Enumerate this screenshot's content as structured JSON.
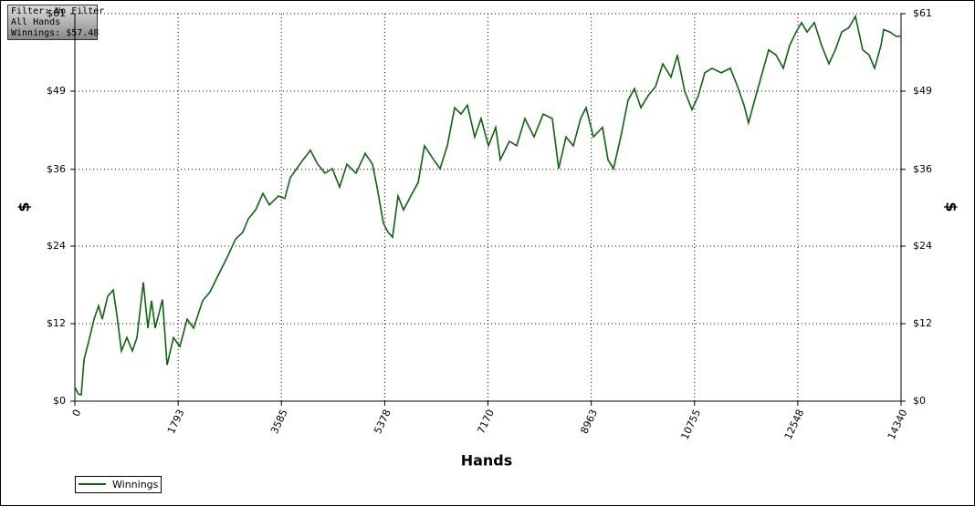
{
  "chart_data": {
    "type": "line",
    "annotations": [
      "Filter: No Filter",
      "All Hands",
      "Winnings: $57.48"
    ],
    "xlabel": "Hands",
    "ylabel": "$",
    "y2label": "$",
    "xlim": [
      0,
      14340
    ],
    "xticks": [
      0,
      1793,
      3585,
      5378,
      7170,
      8963,
      10755,
      12548,
      14340
    ],
    "ylim": [
      0,
      61
    ],
    "yticks": [
      {
        "value": 0,
        "label": "$0"
      },
      {
        "value": 12.2,
        "label": "$12"
      },
      {
        "value": 24.4,
        "label": "$24"
      },
      {
        "value": 36.49,
        "label": "$36"
      },
      {
        "value": 48.8,
        "label": "$49"
      },
      {
        "value": 61,
        "label": "$61"
      }
    ],
    "y2lim": [
      0,
      61
    ],
    "y2ticks": [
      {
        "value": 0,
        "label": "$0"
      },
      {
        "value": 12.2,
        "label": "$12"
      },
      {
        "value": 24.4,
        "label": "$24"
      },
      {
        "value": 36.49,
        "label": "$36"
      },
      {
        "value": 48.8,
        "label": "$49"
      },
      {
        "value": 61,
        "label": "$61"
      }
    ],
    "grid": true,
    "legend": "bottom-left",
    "x": [
      0,
      63,
      111,
      158,
      238,
      333,
      412,
      475,
      570,
      665,
      729,
      808,
      903,
      998,
      1077,
      1188,
      1268,
      1331,
      1394,
      1521,
      1600,
      1711,
      1822,
      1949,
      2060,
      2218,
      2345,
      2504,
      2662,
      2789,
      2915,
      3011,
      3137,
      3264,
      3375,
      3533,
      3644,
      3739,
      3850,
      3961,
      4088,
      4215,
      4342,
      4468,
      4595,
      4722,
      4880,
      5039,
      5165,
      5245,
      5356,
      5435,
      5514,
      5609,
      5704,
      5831,
      5958,
      6069,
      6227,
      6338,
      6465,
      6592,
      6702,
      6813,
      6940,
      7051,
      7178,
      7305,
      7384,
      7542,
      7669,
      7812,
      7970,
      8128,
      8287,
      8398,
      8525,
      8651,
      8778,
      8873,
      9000,
      9158,
      9253,
      9349,
      9475,
      9602,
      9713,
      9824,
      9951,
      10078,
      10204,
      10347,
      10458,
      10584,
      10711,
      10822,
      10933,
      11060,
      11218,
      11377,
      11504,
      11614,
      11693,
      11820,
      11931,
      12042,
      12169,
      12296,
      12407,
      12518,
      12613,
      12708,
      12834,
      12961,
      13088,
      13199,
      13310,
      13436,
      13547,
      13674,
      13785,
      13880,
      13991,
      14039,
      14150,
      14261,
      14340
    ],
    "series": [
      {
        "name": "Winnings",
        "color": "#0b650b",
        "values": [
          2.2,
          1.1,
          1.0,
          6.5,
          9.3,
          12.9,
          15,
          12.9,
          16.5,
          17.5,
          13.6,
          7.9,
          10,
          7.9,
          10,
          18.7,
          11.5,
          15.8,
          11.5,
          16,
          5.7,
          10,
          8.6,
          12.9,
          11.5,
          15.8,
          17.2,
          20.1,
          23,
          25.5,
          26.6,
          28.7,
          30.1,
          32.7,
          30.9,
          32.3,
          31.9,
          35.2,
          36.6,
          38,
          39.5,
          37.3,
          35.9,
          36.6,
          33.7,
          37.3,
          35.9,
          39,
          37.3,
          33.7,
          28,
          26.6,
          25.8,
          32.3,
          30.1,
          32.3,
          34.4,
          40.2,
          38,
          36.6,
          40.2,
          46.2,
          45.2,
          46.6,
          41.6,
          44.5,
          40.2,
          43.1,
          38,
          40.9,
          40.2,
          44.5,
          41.6,
          45.2,
          44.5,
          36.6,
          41.6,
          40.2,
          44.5,
          46.2,
          41.6,
          43.1,
          38,
          36.6,
          41.6,
          47.4,
          49.2,
          46.2,
          48.1,
          49.5,
          53.1,
          51,
          54.5,
          48.8,
          45.9,
          48.1,
          51.7,
          52.4,
          51.7,
          52.4,
          49.5,
          46.6,
          43.8,
          48.1,
          51.7,
          55.3,
          54.5,
          52.4,
          56,
          58.1,
          59.6,
          58.1,
          59.6,
          56,
          53.1,
          55.3,
          58.1,
          58.8,
          60.6,
          55.3,
          54.5,
          52.4,
          56,
          58.5,
          58.1,
          57.4,
          57.48
        ]
      }
    ]
  }
}
